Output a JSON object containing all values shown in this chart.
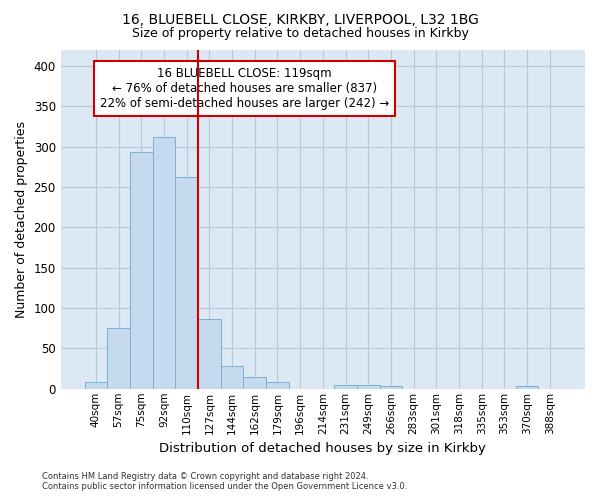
{
  "title1": "16, BLUEBELL CLOSE, KIRKBY, LIVERPOOL, L32 1BG",
  "title2": "Size of property relative to detached houses in Kirkby",
  "xlabel": "Distribution of detached houses by size in Kirkby",
  "ylabel": "Number of detached properties",
  "bar_labels": [
    "40sqm",
    "57sqm",
    "75sqm",
    "92sqm",
    "110sqm",
    "127sqm",
    "144sqm",
    "162sqm",
    "179sqm",
    "196sqm",
    "214sqm",
    "231sqm",
    "249sqm",
    "266sqm",
    "283sqm",
    "301sqm",
    "318sqm",
    "335sqm",
    "353sqm",
    "370sqm",
    "388sqm"
  ],
  "bar_values": [
    8,
    75,
    293,
    312,
    263,
    86,
    28,
    15,
    8,
    0,
    0,
    5,
    5,
    4,
    0,
    0,
    0,
    0,
    0,
    3,
    0
  ],
  "bar_color": "#c5d9ef",
  "bar_edge_color": "#7aafd4",
  "vline_x": 4.5,
  "vline_color": "#cc0000",
  "annotation_text": "16 BLUEBELL CLOSE: 119sqm\n← 76% of detached houses are smaller (837)\n22% of semi-detached houses are larger (242) →",
  "ylim": [
    0,
    420
  ],
  "yticks": [
    0,
    50,
    100,
    150,
    200,
    250,
    300,
    350,
    400
  ],
  "grid_color": "#b8c8dc",
  "background_color": "#dce9f5",
  "footer_line1": "Contains HM Land Registry data © Crown copyright and database right 2024.",
  "footer_line2": "Contains public sector information licensed under the Open Government Licence v3.0."
}
